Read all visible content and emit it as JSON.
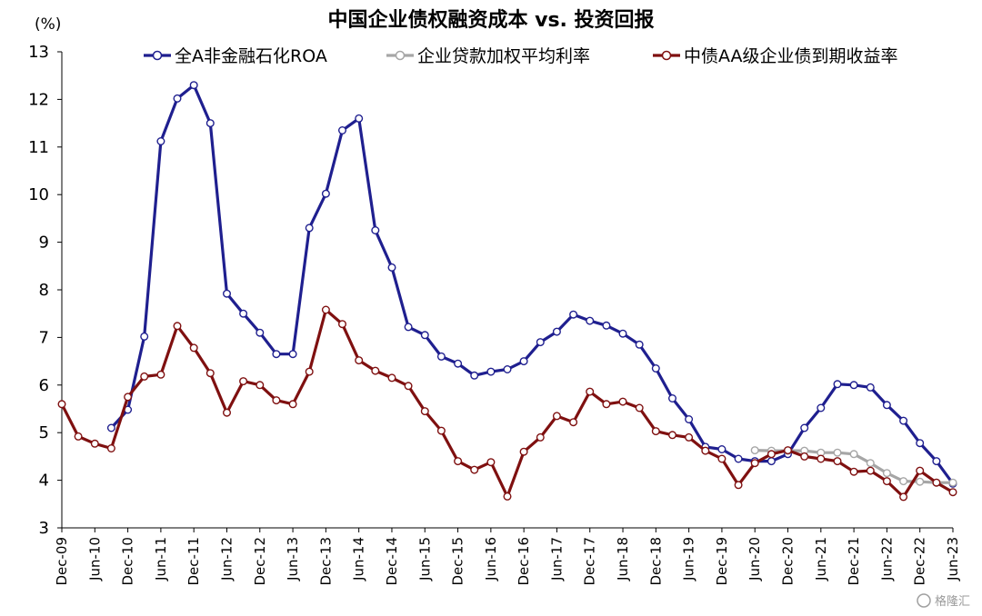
{
  "chart_data": {
    "type": "line",
    "title": "中国企业债权融资成本 vs. 投资回报",
    "unit_label": "(%)",
    "ylim": [
      3,
      13
    ],
    "yticks": [
      "3",
      "4",
      "5",
      "6",
      "7",
      "8",
      "9",
      "10",
      "11",
      "12",
      "13"
    ],
    "x": [
      "Dec-09",
      "Mar-10",
      "Jun-10",
      "Sep-10",
      "Dec-10",
      "Mar-11",
      "Jun-11",
      "Sep-11",
      "Dec-11",
      "Mar-12",
      "Jun-12",
      "Sep-12",
      "Dec-12",
      "Mar-13",
      "Jun-13",
      "Sep-13",
      "Dec-13",
      "Mar-14",
      "Jun-14",
      "Sep-14",
      "Dec-14",
      "Mar-15",
      "Jun-15",
      "Sep-15",
      "Dec-15",
      "Mar-16",
      "Jun-16",
      "Sep-16",
      "Dec-16",
      "Mar-17",
      "Jun-17",
      "Sep-17",
      "Dec-17",
      "Mar-18",
      "Jun-18",
      "Sep-18",
      "Dec-18",
      "Mar-19",
      "Jun-19",
      "Sep-19",
      "Dec-19",
      "Mar-20",
      "Jun-20",
      "Sep-20",
      "Dec-20",
      "Mar-21",
      "Jun-21",
      "Sep-21",
      "Dec-21",
      "Mar-22",
      "Jun-22",
      "Sep-22",
      "Dec-22",
      "Mar-23",
      "Jun-23"
    ],
    "x_tick_labels": [
      "Dec-09",
      "Jun-10",
      "Dec-10",
      "Jun-11",
      "Dec-11",
      "Jun-12",
      "Dec-12",
      "Jun-13",
      "Dec-13",
      "Jun-14",
      "Dec-14",
      "Jun-15",
      "Dec-15",
      "Jun-16",
      "Dec-16",
      "Jun-17",
      "Dec-17",
      "Jun-18",
      "Dec-18",
      "Jun-19",
      "Dec-19",
      "Jun-20",
      "Dec-20",
      "Jun-21",
      "Dec-21",
      "Jun-22",
      "Dec-22",
      "Jun-23"
    ],
    "legend_position": "top",
    "series": [
      {
        "name": "全A非金融石化ROA",
        "color": "#1f1f8f",
        "values": [
          null,
          null,
          null,
          5.1,
          5.48,
          7.02,
          11.12,
          12.02,
          12.3,
          11.5,
          7.92,
          7.5,
          7.1,
          6.65,
          6.65,
          9.3,
          10.02,
          11.35,
          11.6,
          9.25,
          8.47,
          7.22,
          7.05,
          6.6,
          6.45,
          6.2,
          6.28,
          6.33,
          6.5,
          6.9,
          7.12,
          7.48,
          7.35,
          7.25,
          7.08,
          6.85,
          6.35,
          5.72,
          5.28,
          4.7,
          4.65,
          4.45,
          4.4,
          4.4,
          4.55,
          5.1,
          5.52,
          6.02,
          6.0,
          5.95,
          5.58,
          5.25,
          4.78,
          4.4,
          3.93
        ]
      },
      {
        "name": "企业贷款加权平均利率",
        "color": "#a6a6a6",
        "values": [
          null,
          null,
          null,
          null,
          null,
          null,
          null,
          null,
          null,
          null,
          null,
          null,
          null,
          null,
          null,
          null,
          null,
          null,
          null,
          null,
          null,
          null,
          null,
          null,
          null,
          null,
          null,
          null,
          null,
          null,
          null,
          null,
          null,
          null,
          null,
          null,
          null,
          null,
          null,
          null,
          null,
          null,
          4.63,
          4.62,
          4.62,
          4.62,
          4.58,
          4.58,
          4.55,
          4.36,
          4.15,
          3.98,
          3.97,
          3.95,
          3.95
        ]
      },
      {
        "name": "中债AA级企业债到期收益率",
        "color": "#7f1010",
        "values": [
          5.6,
          4.92,
          4.77,
          4.67,
          5.75,
          6.18,
          6.22,
          7.24,
          6.78,
          6.25,
          5.42,
          6.08,
          6.0,
          5.68,
          5.6,
          6.28,
          7.58,
          7.28,
          6.52,
          6.3,
          6.15,
          5.98,
          5.45,
          5.04,
          4.4,
          4.22,
          4.38,
          3.66,
          4.6,
          4.9,
          5.35,
          5.22,
          5.86,
          5.6,
          5.65,
          5.52,
          5.03,
          4.95,
          4.9,
          4.62,
          4.45,
          3.9,
          4.36,
          4.55,
          4.63,
          4.5,
          4.45,
          4.4,
          4.18,
          4.2,
          3.98,
          3.65,
          4.2,
          3.95,
          3.75
        ]
      }
    ],
    "watermark": "格隆汇"
  }
}
